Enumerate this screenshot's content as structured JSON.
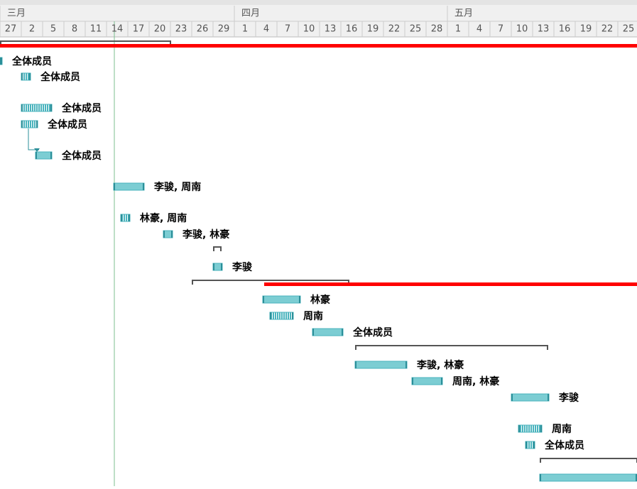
{
  "timeline": {
    "months": [
      "三月",
      "四月",
      "五月"
    ],
    "days": [
      27,
      2,
      5,
      8,
      11,
      14,
      17,
      20,
      23,
      26,
      29,
      1,
      4,
      7,
      10,
      13,
      16,
      19,
      22,
      25,
      28,
      1,
      4,
      7,
      10,
      13,
      16,
      19,
      22,
      25
    ]
  },
  "task_labels": [
    "全体成员",
    "全体成员",
    "全体成员",
    "全体成员",
    "全体成员",
    "李骏, 周南",
    "林豪, 周南",
    "李骏, 林豪",
    "李骏",
    "林豪",
    "周南",
    "全体成员",
    "李骏, 林豪",
    "周南, 林豪",
    "李骏",
    "周南",
    "全体成员"
  ]
}
